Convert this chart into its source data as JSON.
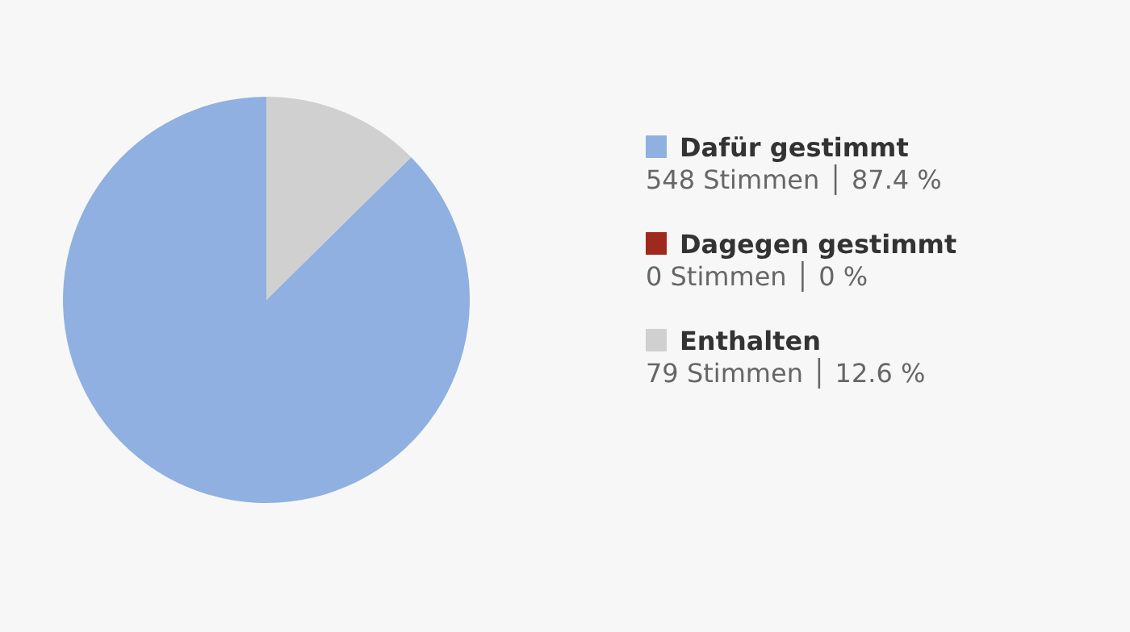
{
  "chart_data": {
    "type": "pie",
    "categories": [
      "Dafür gestimmt",
      "Dagegen gestimmt",
      "Enthalten"
    ],
    "values": [
      548,
      0,
      79
    ],
    "colors": [
      "#8fb0e0",
      "#a0291e",
      "#d0d0d0"
    ],
    "value_labels": [
      "548 Stimmen │ 87.4 %",
      "0 Stimmen │ 0 %",
      "79 Stimmen │ 12.6 %"
    ],
    "legend": "right"
  }
}
